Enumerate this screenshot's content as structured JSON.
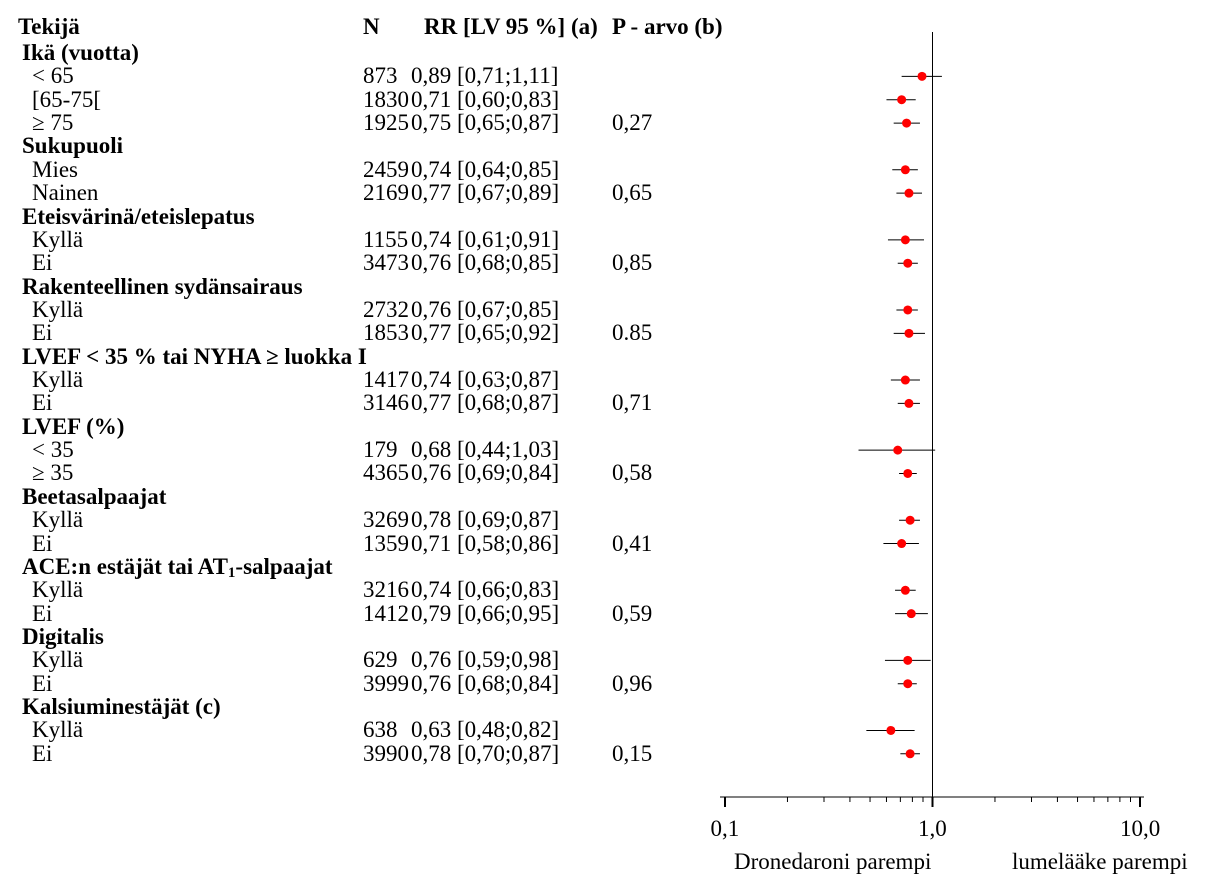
{
  "header": {
    "factor": "Tekijä",
    "n": "N",
    "rr": "RR [LV 95 %] (a)",
    "p": "P - arvo (b)"
  },
  "chart_data": {
    "type": "forest",
    "x_scale": "log",
    "xlim": [
      0.1,
      10.0
    ],
    "reference_line": 1.0,
    "x_ticks": [
      "0,1",
      "1,0",
      "10,0"
    ],
    "footer_left": "Dronedaroni parempi",
    "footer_right": "lumelääke parempi",
    "point_color": "#ff0000",
    "rows": [
      {
        "kind": "group",
        "label": "Ikä (vuotta)"
      },
      {
        "kind": "item",
        "label": "< 65",
        "n": "873",
        "ci": "0,89 [0,71;1,11]",
        "p": "",
        "rr": 0.89,
        "lo": 0.71,
        "hi": 1.11
      },
      {
        "kind": "item",
        "label": "[65-75[",
        "n": "1830",
        "ci": "0,71 [0,60;0,83]",
        "p": "",
        "rr": 0.71,
        "lo": 0.6,
        "hi": 0.83
      },
      {
        "kind": "item",
        "label": "≥ 75",
        "n": "1925",
        "ci": "0,75 [0,65;0,87]",
        "p": "0,27",
        "rr": 0.75,
        "lo": 0.65,
        "hi": 0.87
      },
      {
        "kind": "group",
        "label": "Sukupuoli"
      },
      {
        "kind": "item",
        "label": "Mies",
        "n": "2459",
        "ci": "0,74 [0,64;0,85]",
        "p": "",
        "rr": 0.74,
        "lo": 0.64,
        "hi": 0.85
      },
      {
        "kind": "item",
        "label": "Nainen",
        "n": "2169",
        "ci": "0,77 [0,67;0,89]",
        "p": "0,65",
        "rr": 0.77,
        "lo": 0.67,
        "hi": 0.89
      },
      {
        "kind": "group",
        "label": "Eteisvärinä/eteislepatus"
      },
      {
        "kind": "item",
        "label": "Kyllä",
        "n": "1155",
        "ci": "0,74 [0,61;0,91]",
        "p": "",
        "rr": 0.74,
        "lo": 0.61,
        "hi": 0.91
      },
      {
        "kind": "item",
        "label": "Ei",
        "n": "3473",
        "ci": "0,76 [0,68;0,85]",
        "p": "0,85",
        "rr": 0.76,
        "lo": 0.68,
        "hi": 0.85
      },
      {
        "kind": "group",
        "label": "Rakenteellinen sydänsairaus"
      },
      {
        "kind": "item",
        "label": "Kyllä",
        "n": "2732",
        "ci": "0,76 [0,67;0,85]",
        "p": "",
        "rr": 0.76,
        "lo": 0.67,
        "hi": 0.85
      },
      {
        "kind": "item",
        "label": "Ei",
        "n": "1853",
        "ci": "0,77 [0,65;0,92]",
        "p": "0.85",
        "rr": 0.77,
        "lo": 0.65,
        "hi": 0.92
      },
      {
        "kind": "group",
        "label": "LVEF < 35 % tai NYHA ≥ luokka I"
      },
      {
        "kind": "item",
        "label": "Kyllä",
        "n": "1417",
        "ci": "0,74 [0,63;0,87]",
        "p": "",
        "rr": 0.74,
        "lo": 0.63,
        "hi": 0.87
      },
      {
        "kind": "item",
        "label": "Ei",
        "n": "3146",
        "ci": "0,77 [0,68;0,87]",
        "p": "0,71",
        "rr": 0.77,
        "lo": 0.68,
        "hi": 0.87
      },
      {
        "kind": "group",
        "label": "LVEF (%)"
      },
      {
        "kind": "item",
        "label": "< 35",
        "n": "179",
        "ci": "0,68 [0,44;1,03]",
        "p": "",
        "rr": 0.68,
        "lo": 0.44,
        "hi": 1.03
      },
      {
        "kind": "item",
        "label": "≥ 35",
        "n": "4365",
        "ci": "0,76 [0,69;0,84]",
        "p": "0,58",
        "rr": 0.76,
        "lo": 0.69,
        "hi": 0.84
      },
      {
        "kind": "group",
        "label": "Beetasalpaajat"
      },
      {
        "kind": "item",
        "label": "Kyllä",
        "n": "3269",
        "ci": "0,78 [0,69;0,87]",
        "p": "",
        "rr": 0.78,
        "lo": 0.69,
        "hi": 0.87
      },
      {
        "kind": "item",
        "label": "Ei",
        "n": "1359",
        "ci": "0,71 [0,58;0,86]",
        "p": "0,41",
        "rr": 0.71,
        "lo": 0.58,
        "hi": 0.86
      },
      {
        "kind": "group",
        "label": "ACE:n estäjät tai AT",
        "sub": "1",
        "suffix": "-salpaajat"
      },
      {
        "kind": "item",
        "label": "Kyllä",
        "n": "3216",
        "ci": "0,74 [0,66;0,83]",
        "p": "",
        "rr": 0.74,
        "lo": 0.66,
        "hi": 0.83
      },
      {
        "kind": "item",
        "label": "Ei",
        "n": "1412",
        "ci": "0,79 [0,66;0,95]",
        "p": "0,59",
        "rr": 0.79,
        "lo": 0.66,
        "hi": 0.95
      },
      {
        "kind": "group",
        "label": "Digitalis"
      },
      {
        "kind": "item",
        "label": "Kyllä",
        "n": "629",
        "ci": "0,76 [0,59;0,98]",
        "p": "",
        "rr": 0.76,
        "lo": 0.59,
        "hi": 0.98
      },
      {
        "kind": "item",
        "label": "Ei",
        "n": "3999",
        "ci": "0,76 [0,68;0,84]",
        "p": "0,96",
        "rr": 0.76,
        "lo": 0.68,
        "hi": 0.84
      },
      {
        "kind": "group",
        "label": "Kalsiuminestäjät (c)"
      },
      {
        "kind": "item",
        "label": "Kyllä",
        "n": "638",
        "ci": "0,63 [0,48;0,82]",
        "p": "",
        "rr": 0.63,
        "lo": 0.48,
        "hi": 0.82
      },
      {
        "kind": "item",
        "label": "Ei",
        "n": "3990",
        "ci": "0,78 [0,70;0,87]",
        "p": "0,15",
        "rr": 0.78,
        "lo": 0.7,
        "hi": 0.87
      }
    ]
  }
}
